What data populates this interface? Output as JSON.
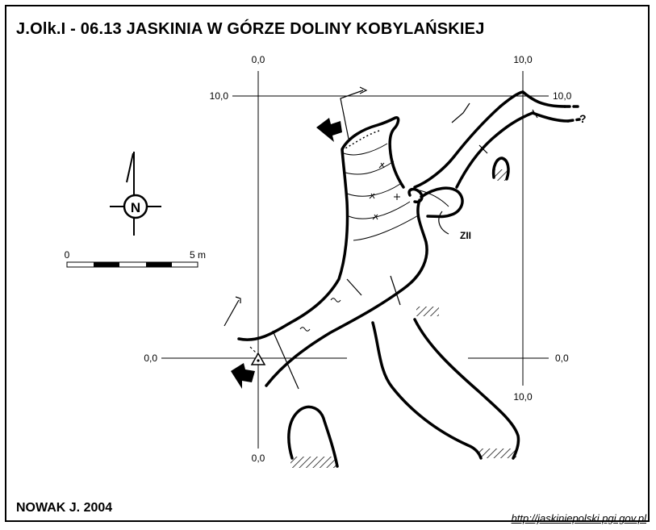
{
  "title": "J.Olk.I - 06.13  JASKINIA W GÓRZE DOLINY KOBYLAŃSKIEJ",
  "author": "NOWAK J.  2004",
  "url": "http://jaskiniepolski.pgi.gov.pl",
  "grid_labels": {
    "top_left": "0,0",
    "top_right": "10,0",
    "right_top": "10,0",
    "left_top": "10,0",
    "left_bottom": "0,0",
    "right_bottom": "0,0",
    "bottom_right": "10,0",
    "bottom_left": "0,0"
  },
  "compass": {
    "label": "N"
  },
  "scale_bar": {
    "start": "0",
    "end": "5 m"
  },
  "annotations": {
    "zii": "ZII",
    "question": "?"
  },
  "colors": {
    "ink": "#000000",
    "paper": "#ffffff"
  }
}
